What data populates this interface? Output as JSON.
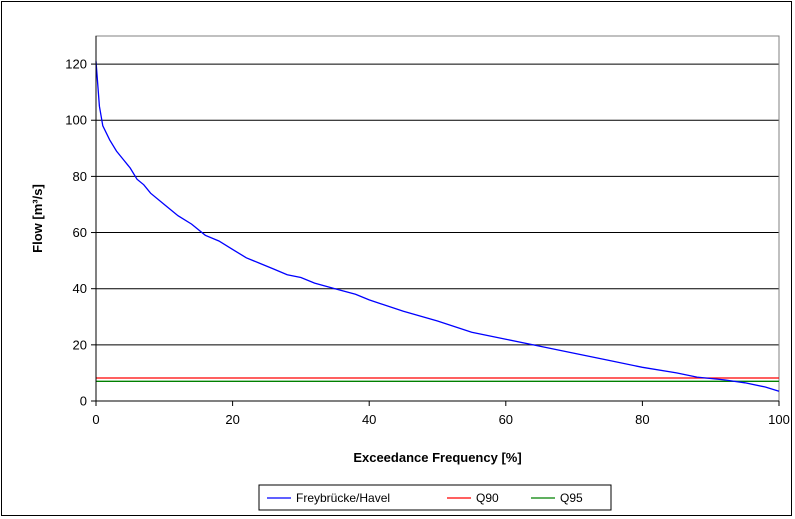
{
  "chart_data": {
    "type": "line",
    "xlabel": "Exceedance Frequency [%]",
    "ylabel": "Flow [m³/s]",
    "xlim": [
      0,
      100
    ],
    "ylim": [
      0,
      130
    ],
    "xticks": [
      "0",
      "20",
      "40",
      "60",
      "80",
      "100"
    ],
    "yticks": [
      "0",
      "20",
      "40",
      "60",
      "80",
      "100",
      "120"
    ],
    "grid": "horizontal",
    "legend_position": "bottom",
    "series": [
      {
        "name": "Freybrücke/Havel",
        "color": "#0000ff",
        "x": [
          0,
          0.5,
          1,
          2,
          3,
          4,
          5,
          6,
          7,
          8,
          10,
          12,
          14,
          16,
          18,
          20,
          22,
          24,
          26,
          28,
          30,
          32,
          35,
          38,
          40,
          45,
          50,
          55,
          60,
          65,
          70,
          75,
          80,
          85,
          88,
          90,
          92,
          95,
          98,
          100
        ],
        "y": [
          121,
          105,
          98,
          93,
          89,
          86,
          83,
          79,
          77,
          74,
          70,
          66,
          63,
          59,
          57,
          54,
          51,
          49,
          47,
          45,
          44,
          42,
          40,
          38,
          36,
          32,
          28.5,
          24.5,
          22,
          19.5,
          17,
          14.5,
          12,
          10,
          8.5,
          8,
          7.5,
          6.5,
          5,
          3.5
        ]
      },
      {
        "name": "Q90",
        "color": "#ff0000",
        "x": [
          0,
          100
        ],
        "y": [
          8.2,
          8.2
        ]
      },
      {
        "name": "Q95",
        "color": "#008000",
        "x": [
          0,
          100
        ],
        "y": [
          7.0,
          7.0
        ]
      }
    ]
  }
}
